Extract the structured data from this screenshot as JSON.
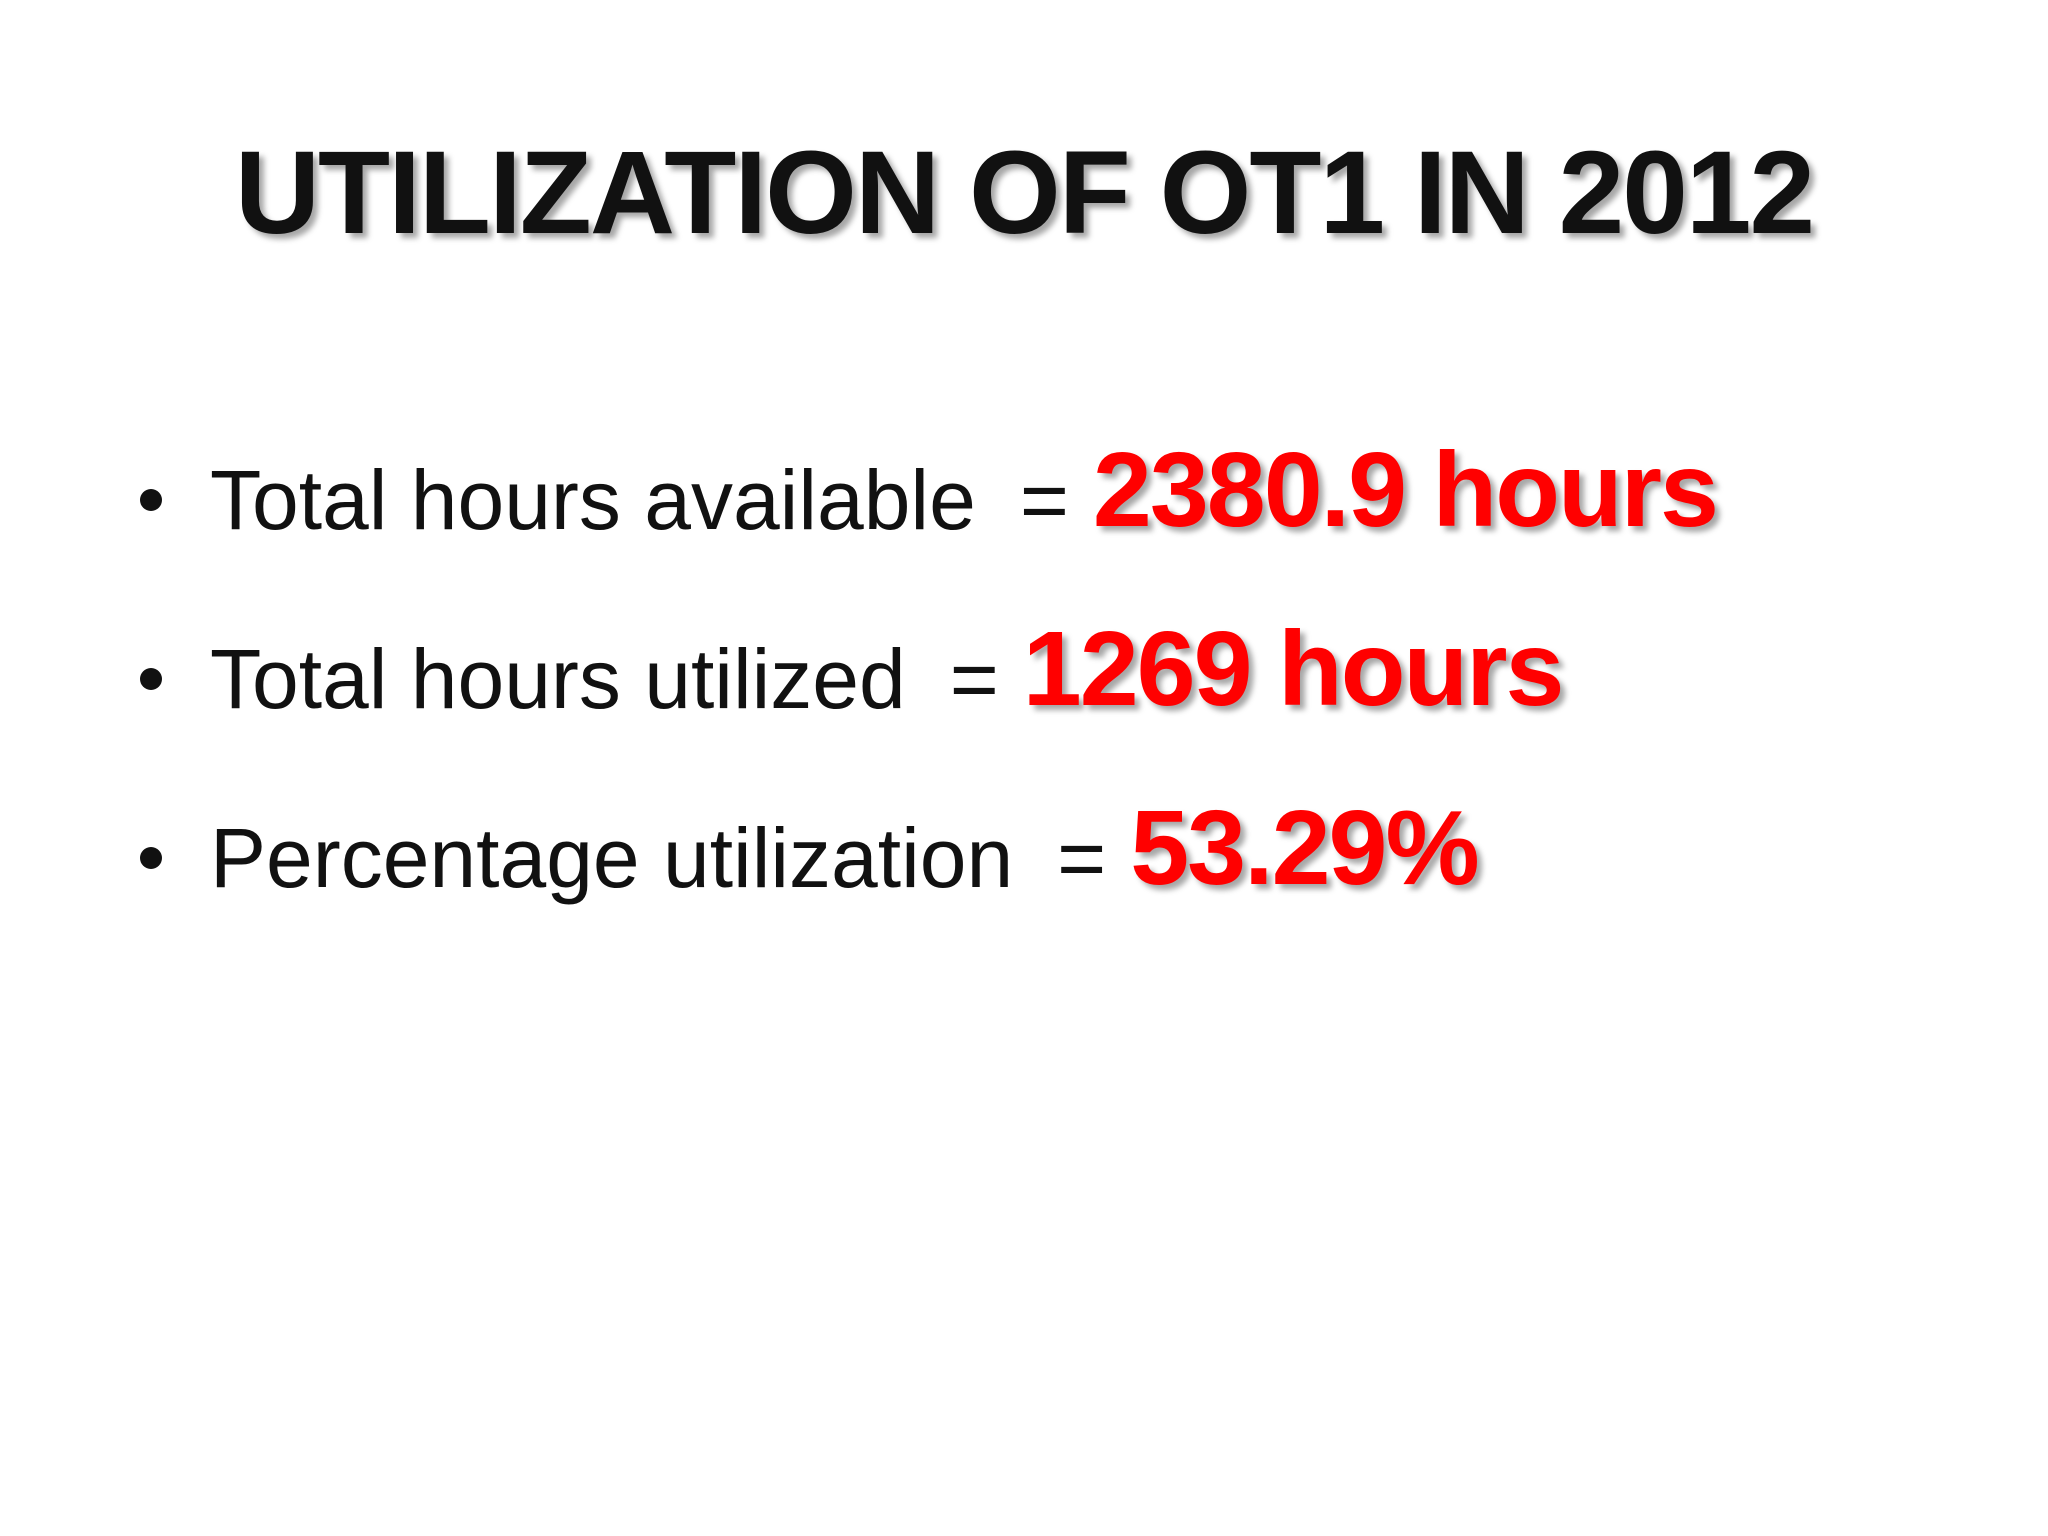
{
  "title": "UTILIZATION OF OT1 IN 2012",
  "bullets": [
    {
      "label": "Total hours available",
      "separator": "=",
      "value": "2380.9 hours"
    },
    {
      "label": "Total hours utilized",
      "separator": "=",
      "value": "1269 hours"
    },
    {
      "label": "Percentage utilization",
      "separator": "=",
      "value": "53.29%"
    }
  ]
}
